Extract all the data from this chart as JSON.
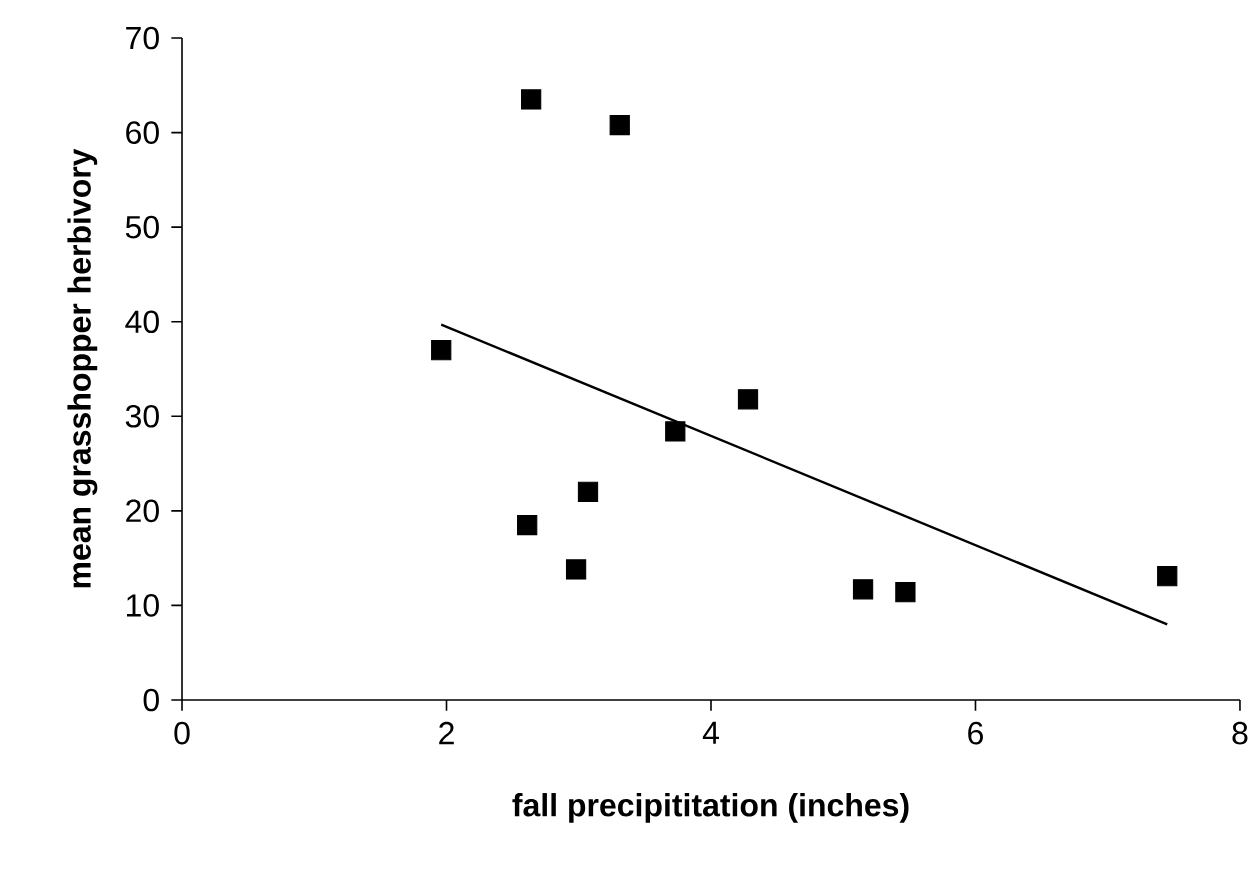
{
  "chart_data": {
    "type": "scatter",
    "xlabel": "fall precipititation (inches)",
    "ylabel": "mean grasshopper herbivory",
    "xlim": [
      0,
      8
    ],
    "xticks": [
      0,
      2,
      4,
      6,
      8
    ],
    "ylim": [
      0,
      70
    ],
    "yticks": [
      0,
      10,
      20,
      30,
      40,
      50,
      60,
      70
    ],
    "grid": false,
    "series": [
      {
        "marker": "square",
        "color": "#000000",
        "x": [
          1.96,
          2.61,
          2.64,
          2.98,
          3.07,
          3.31,
          3.73,
          4.28,
          5.15,
          5.47,
          7.45
        ],
        "values": [
          37,
          18.5,
          63.5,
          13.8,
          22,
          60.8,
          28.4,
          31.8,
          11.7,
          11.4,
          13.1
        ]
      },
      {
        "type": "line",
        "marker": "none",
        "color": "#000000",
        "x": [
          1.96,
          7.45
        ],
        "values": [
          39.7,
          8.0
        ]
      }
    ]
  }
}
